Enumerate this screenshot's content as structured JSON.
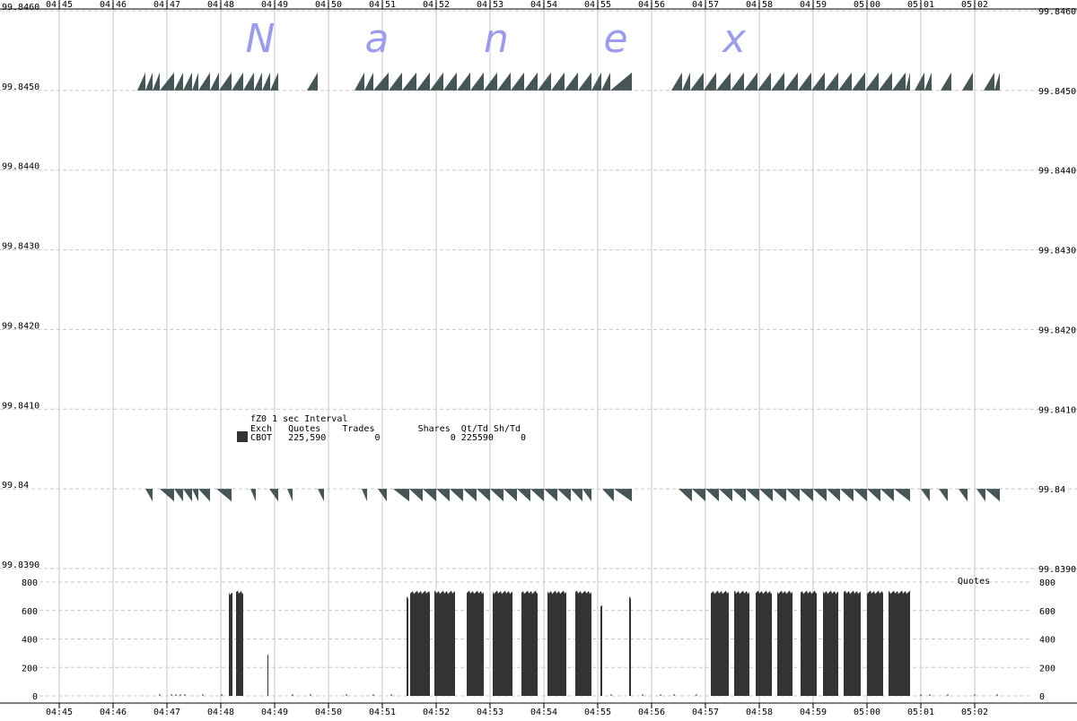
{
  "chart_data": [
    {
      "type": "area",
      "title": "fZ0 1 sec Interval",
      "logo": [
        "N",
        "a",
        "n",
        "e",
        "x"
      ],
      "x_ticks": [
        "04:45",
        "04:46",
        "04:47",
        "04:48",
        "04:49",
        "04:50",
        "04:51",
        "04:52",
        "04:53",
        "04:54",
        "04:55",
        "04:56",
        "04:57",
        "04:58",
        "04:59",
        "05:00",
        "05:01",
        "05:02"
      ],
      "xlim": [
        "04:44:30",
        "05:03:20"
      ],
      "y_ticks_left": [
        "99.8460",
        "99.8450",
        "99.8440",
        "99.8430",
        "99.8420",
        "99.8410",
        "99.84",
        "99.8390"
      ],
      "y_ticks_right": [
        "99.8460",
        "99.8450",
        "99.8440",
        "99.8430",
        "99.8420",
        "99.8410",
        "99.84",
        "99.8390"
      ],
      "ylim": [
        99.839,
        99.846
      ],
      "grid": true,
      "series": [
        {
          "kind": "ask",
          "price": 99.845,
          "color": "#465555",
          "segments": [
            [
              "04:46:27",
              "04:46:36"
            ],
            [
              "04:46:36",
              "04:46:44"
            ],
            [
              "04:46:44",
              "04:46:52"
            ],
            [
              "04:46:52",
              "04:47:08"
            ],
            [
              "04:47:08",
              "04:47:18"
            ],
            [
              "04:47:18",
              "04:47:28"
            ],
            [
              "04:47:28",
              "04:47:35"
            ],
            [
              "04:47:35",
              "04:47:48"
            ],
            [
              "04:47:48",
              "04:47:58"
            ],
            [
              "04:47:58",
              "04:48:12"
            ],
            [
              "04:48:12",
              "04:48:25"
            ],
            [
              "04:48:25",
              "04:48:37"
            ],
            [
              "04:48:37",
              "04:48:46"
            ],
            [
              "04:48:46",
              "04:48:55"
            ],
            [
              "04:48:55",
              "04:49:04"
            ],
            [
              "04:49:36",
              "04:49:48"
            ],
            [
              "04:50:29",
              "04:50:40"
            ],
            [
              "04:50:40",
              "04:50:50"
            ],
            [
              "04:50:50",
              "04:51:07"
            ],
            [
              "04:51:07",
              "04:51:22"
            ],
            [
              "04:51:22",
              "04:51:38"
            ],
            [
              "04:51:38",
              "04:51:53"
            ],
            [
              "04:51:53",
              "04:52:08"
            ],
            [
              "04:52:08",
              "04:52:23"
            ],
            [
              "04:52:23",
              "04:52:38"
            ],
            [
              "04:52:38",
              "04:52:53"
            ],
            [
              "04:52:53",
              "04:53:08"
            ],
            [
              "04:53:08",
              "04:53:23"
            ],
            [
              "04:53:23",
              "04:53:38"
            ],
            [
              "04:53:38",
              "04:53:53"
            ],
            [
              "04:53:53",
              "04:54:08"
            ],
            [
              "04:54:08",
              "04:54:23"
            ],
            [
              "04:54:23",
              "04:54:38"
            ],
            [
              "04:54:38",
              "04:54:53"
            ],
            [
              "04:54:53",
              "04:55:04"
            ],
            [
              "04:55:04",
              "04:55:14"
            ],
            [
              "04:55:14",
              "04:55:38"
            ],
            [
              "04:56:22",
              "04:56:34"
            ],
            [
              "04:56:34",
              "04:56:43"
            ],
            [
              "04:56:43",
              "04:56:58"
            ],
            [
              "04:56:58",
              "04:57:12"
            ],
            [
              "04:57:12",
              "04:57:28"
            ],
            [
              "04:57:28",
              "04:57:43"
            ],
            [
              "04:57:43",
              "04:57:58"
            ],
            [
              "04:57:58",
              "04:58:13"
            ],
            [
              "04:58:13",
              "04:58:28"
            ],
            [
              "04:58:28",
              "04:58:43"
            ],
            [
              "04:58:43",
              "04:58:58"
            ],
            [
              "04:58:58",
              "04:59:13"
            ],
            [
              "04:59:13",
              "04:59:28"
            ],
            [
              "04:59:28",
              "04:59:43"
            ],
            [
              "04:59:43",
              "04:59:58"
            ],
            [
              "04:59:58",
              "05:00:13"
            ],
            [
              "05:00:13",
              "05:00:28"
            ],
            [
              "05:00:28",
              "05:00:43"
            ],
            [
              "05:00:43",
              "05:00:48"
            ],
            [
              "05:00:53",
              "05:01:04"
            ],
            [
              "05:01:04",
              "05:01:12"
            ],
            [
              "05:01:22",
              "05:01:34"
            ],
            [
              "05:01:46",
              "05:01:58"
            ],
            [
              "05:02:10",
              "05:02:22"
            ],
            [
              "05:02:22",
              "05:02:28"
            ]
          ]
        },
        {
          "kind": "bid",
          "price": 99.84,
          "color": "#465555",
          "segments": [
            [
              "04:46:36",
              "04:46:44"
            ],
            [
              "04:46:52",
              "04:47:08"
            ],
            [
              "04:47:08",
              "04:47:18"
            ],
            [
              "04:47:18",
              "04:47:28"
            ],
            [
              "04:47:28",
              "04:47:35"
            ],
            [
              "04:47:35",
              "04:47:48"
            ],
            [
              "04:47:55",
              "04:48:12"
            ],
            [
              "04:48:33",
              "04:48:39"
            ],
            [
              "04:48:54",
              "04:49:04"
            ],
            [
              "04:49:14",
              "04:49:20"
            ],
            [
              "04:49:48",
              "04:49:55"
            ],
            [
              "04:50:37",
              "04:50:43"
            ],
            [
              "04:50:55",
              "04:51:05"
            ],
            [
              "04:51:12",
              "04:51:30"
            ],
            [
              "04:51:30",
              "04:51:45"
            ],
            [
              "04:51:45",
              "04:52:00"
            ],
            [
              "04:52:00",
              "04:52:15"
            ],
            [
              "04:52:15",
              "04:52:30"
            ],
            [
              "04:52:30",
              "04:52:45"
            ],
            [
              "04:52:45",
              "04:53:00"
            ],
            [
              "04:53:00",
              "04:53:15"
            ],
            [
              "04:53:15",
              "04:53:30"
            ],
            [
              "04:53:30",
              "04:53:45"
            ],
            [
              "04:53:45",
              "04:54:00"
            ],
            [
              "04:54:00",
              "04:54:15"
            ],
            [
              "04:54:15",
              "04:54:30"
            ],
            [
              "04:54:30",
              "04:54:43"
            ],
            [
              "04:54:43",
              "04:54:53"
            ],
            [
              "04:55:05",
              "04:55:18"
            ],
            [
              "04:55:18",
              "04:55:38"
            ],
            [
              "04:56:30",
              "04:56:45"
            ],
            [
              "04:56:45",
              "04:57:00"
            ],
            [
              "04:57:00",
              "04:57:15"
            ],
            [
              "04:57:15",
              "04:57:30"
            ],
            [
              "04:57:30",
              "04:57:45"
            ],
            [
              "04:57:45",
              "04:58:00"
            ],
            [
              "04:58:00",
              "04:58:15"
            ],
            [
              "04:58:15",
              "04:58:30"
            ],
            [
              "04:58:30",
              "04:58:45"
            ],
            [
              "04:58:45",
              "04:59:00"
            ],
            [
              "04:59:00",
              "04:59:15"
            ],
            [
              "04:59:15",
              "04:59:30"
            ],
            [
              "04:59:30",
              "04:59:45"
            ],
            [
              "04:59:45",
              "05:00:00"
            ],
            [
              "05:00:00",
              "05:00:15"
            ],
            [
              "05:00:15",
              "05:00:30"
            ],
            [
              "05:00:30",
              "05:00:48"
            ],
            [
              "05:01:00",
              "05:01:10"
            ],
            [
              "05:01:20",
              "05:01:30"
            ],
            [
              "05:01:42",
              "05:01:52"
            ],
            [
              "05:02:02",
              "05:02:12"
            ],
            [
              "05:02:12",
              "05:02:28"
            ]
          ]
        }
      ],
      "stats": {
        "line1": "fZ0 1 sec Interval",
        "header": "Exch   Quotes    Trades        Shares  Qt/Td Sh/Td",
        "row": "CBOT   225,590         0             0 225590     0",
        "swatch_color": "#333333"
      }
    },
    {
      "type": "bar",
      "title": "Quotes",
      "ylabel": "Quotes",
      "ylim": [
        0,
        800
      ],
      "y_ticks": [
        "800",
        "600",
        "400",
        "200",
        "0"
      ],
      "x_ticks": [
        "04:45",
        "04:46",
        "04:47",
        "04:48",
        "04:49",
        "04:50",
        "04:51",
        "04:52",
        "04:53",
        "04:54",
        "04:55",
        "04:56",
        "04:57",
        "04:58",
        "04:59",
        "05:00",
        "05:01",
        "05:02"
      ],
      "color": "#333333",
      "blocks": [
        {
          "start": "04:48:09",
          "end": "04:48:13",
          "value": 730
        },
        {
          "start": "04:48:17",
          "end": "04:48:25",
          "value": 740
        },
        {
          "start": "04:48:52",
          "end": "04:48:53",
          "value": 310
        },
        {
          "start": "04:51:27",
          "end": "04:51:29",
          "value": 700
        },
        {
          "start": "04:51:31",
          "end": "04:51:53",
          "value": 740
        },
        {
          "start": "04:51:58",
          "end": "04:52:21",
          "value": 740
        },
        {
          "start": "04:52:34",
          "end": "04:52:53",
          "value": 740
        },
        {
          "start": "04:53:03",
          "end": "04:53:25",
          "value": 740
        },
        {
          "start": "04:53:35",
          "end": "04:53:53",
          "value": 740
        },
        {
          "start": "04:54:04",
          "end": "04:54:25",
          "value": 740
        },
        {
          "start": "04:54:35",
          "end": "04:54:53",
          "value": 740
        },
        {
          "start": "04:55:03",
          "end": "04:55:05",
          "value": 650
        },
        {
          "start": "04:55:35",
          "end": "04:55:37",
          "value": 700
        },
        {
          "start": "04:57:06",
          "end": "04:57:26",
          "value": 740
        },
        {
          "start": "04:57:32",
          "end": "04:57:49",
          "value": 740
        },
        {
          "start": "04:57:56",
          "end": "04:58:14",
          "value": 740
        },
        {
          "start": "04:58:20",
          "end": "04:58:37",
          "value": 740
        },
        {
          "start": "04:58:46",
          "end": "04:59:04",
          "value": 740
        },
        {
          "start": "04:59:11",
          "end": "04:59:28",
          "value": 740
        },
        {
          "start": "04:59:34",
          "end": "04:59:53",
          "value": 740
        },
        {
          "start": "05:00:00",
          "end": "05:00:18",
          "value": 740
        },
        {
          "start": "05:00:24",
          "end": "05:00:48",
          "value": 740
        }
      ],
      "trickle": [
        "04:46:52",
        "04:47:05",
        "04:47:10",
        "04:47:15",
        "04:47:20",
        "04:47:40",
        "04:48:01",
        "04:49:20",
        "04:49:40",
        "04:50:20",
        "04:50:50",
        "04:51:10",
        "04:55:15",
        "04:55:50",
        "04:56:10",
        "04:56:25",
        "04:56:50",
        "05:01:00",
        "05:01:10",
        "05:01:30",
        "05:02:00",
        "05:02:25"
      ]
    }
  ]
}
